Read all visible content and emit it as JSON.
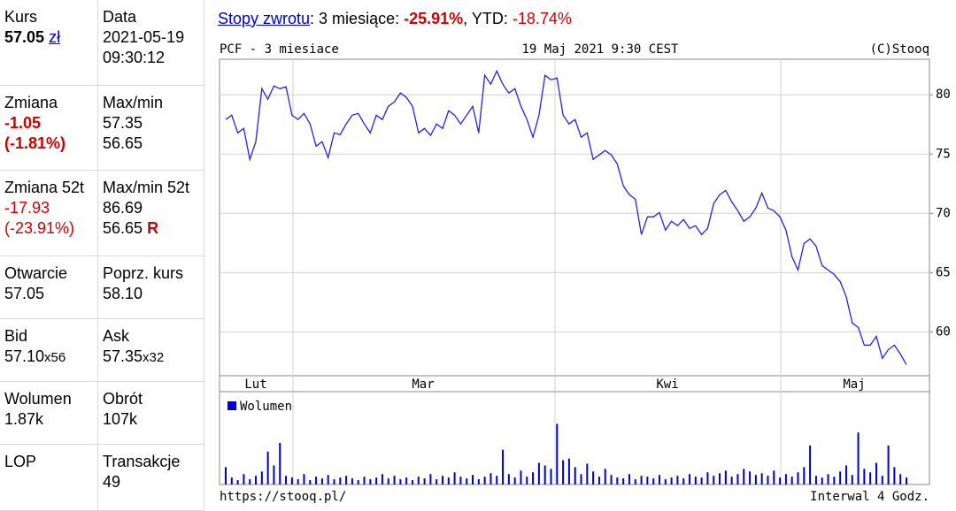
{
  "quote": {
    "kurs": {
      "label": "Kurs",
      "value": "57.05",
      "currency": "zł"
    },
    "data": {
      "label": "Data",
      "date": "2021-05-19",
      "time": "09:30:12"
    },
    "zmiana": {
      "label": "Zmiana",
      "abs": "-1.05",
      "pct": "(-1.81%)"
    },
    "maxmin": {
      "label": "Max/min",
      "max": "57.35",
      "min": "56.65"
    },
    "zmiana52": {
      "label": "Zmiana 52t",
      "abs": "-17.93",
      "pct": "(-23.91%)"
    },
    "maxmin52": {
      "label": "Max/min 52t",
      "max": "86.69",
      "min": "56.65",
      "flag": "R"
    },
    "otwarcie": {
      "label": "Otwarcie",
      "value": "57.05"
    },
    "poprz": {
      "label": "Poprz. kurs",
      "value": "58.10"
    },
    "bid": {
      "label": "Bid",
      "value": "57.10",
      "size": "x56"
    },
    "ask": {
      "label": "Ask",
      "value": "57.35",
      "size": "x32"
    },
    "wolumen": {
      "label": "Wolumen",
      "value": "1.87k"
    },
    "obrot": {
      "label": "Obrót",
      "value": "107k"
    },
    "lop": {
      "label": "LOP"
    },
    "transakcje": {
      "label": "Transakcje",
      "value": "49"
    }
  },
  "returns": {
    "link": "Stopy zwrotu",
    "period_3m": ": 3 miesiące:",
    "value_3m": "-25.91%",
    "period_ytd": ", YTD:",
    "value_ytd": "-18.74%"
  },
  "chart_data": [
    {
      "type": "line",
      "title": "PCF - 3 miesiace",
      "timestamp": "19 Maj 2021 9:30 CEST",
      "copyright": "(C)Stooq",
      "months": [
        "Lut",
        "Mar",
        "Kwi",
        "Maj"
      ],
      "color": "#2323e6",
      "ylim": [
        56.3,
        83.0
      ],
      "yticks": [
        60,
        65,
        70,
        75,
        80
      ],
      "grid": true,
      "values": [
        77.91,
        78.28,
        76.79,
        77.16,
        74.55,
        76.04,
        80.52,
        79.63,
        80.75,
        80.52,
        80.67,
        78.28,
        77.91,
        78.43,
        77.54,
        75.67,
        76.04,
        74.7,
        76.79,
        76.64,
        77.54,
        78.28,
        78.43,
        77.54,
        76.79,
        78.28,
        77.91,
        79.03,
        79.4,
        80.15,
        79.78,
        79.03,
        76.79,
        77.16,
        76.57,
        77.54,
        77.16,
        78.66,
        78.28,
        77.54,
        78.28,
        79.03,
        76.79,
        81.64,
        80.9,
        82.01,
        80.9,
        80.15,
        80.52,
        79.03,
        77.91,
        76.42,
        78.28,
        81.64,
        81.27,
        81.42,
        78.28,
        77.54,
        77.91,
        76.42,
        76.79,
        74.55,
        74.93,
        75.3,
        74.93,
        74.18,
        72.31,
        71.57,
        71.19,
        68.21,
        69.7,
        69.7,
        70.07,
        68.58,
        69.33,
        68.96,
        69.48,
        68.73,
        68.96,
        68.21,
        68.73,
        70.82,
        71.57,
        71.94,
        70.97,
        70.22,
        69.33,
        69.7,
        70.45,
        71.72,
        70.45,
        70.22,
        69.7,
        68.58,
        66.34,
        65.22,
        67.46,
        67.84,
        67.24,
        65.6,
        65.22,
        64.85,
        64.25,
        62.99,
        60.75,
        60.37,
        58.88,
        58.88,
        59.63,
        57.76,
        58.51,
        58.88,
        58.13,
        57.24
      ]
    },
    {
      "type": "bar",
      "ylim": [
        0,
        100
      ],
      "series": [
        {
          "name": "Wolumen",
          "color": "#0000cc",
          "values": [
            20,
            8,
            5,
            12,
            6,
            10,
            15,
            38,
            22,
            48,
            10,
            8,
            6,
            12,
            5,
            9,
            7,
            11,
            6,
            8,
            10,
            7,
            5,
            9,
            6,
            8,
            12,
            7,
            10,
            6,
            8,
            5,
            9,
            7,
            12,
            6,
            10,
            8,
            14,
            9,
            7,
            11,
            6,
            9,
            13,
            10,
            40,
            12,
            8,
            16,
            9,
            14,
            25,
            22,
            18,
            70,
            28,
            30,
            20,
            12,
            24,
            15,
            9,
            18,
            11,
            8,
            7,
            12,
            6,
            10,
            9,
            7,
            11,
            6,
            8,
            10,
            7,
            12,
            9,
            8,
            14,
            10,
            13,
            16,
            9,
            12,
            18,
            15,
            11,
            13,
            10,
            16,
            8,
            12,
            9,
            14,
            20,
            45,
            10,
            8,
            12,
            9,
            15,
            22,
            11,
            60,
            18,
            14,
            25,
            10,
            45,
            20,
            12,
            8
          ]
        }
      ]
    }
  ],
  "footer": {
    "url": "https://stooq.pl/",
    "interval": "Interwal 4 Godz."
  }
}
